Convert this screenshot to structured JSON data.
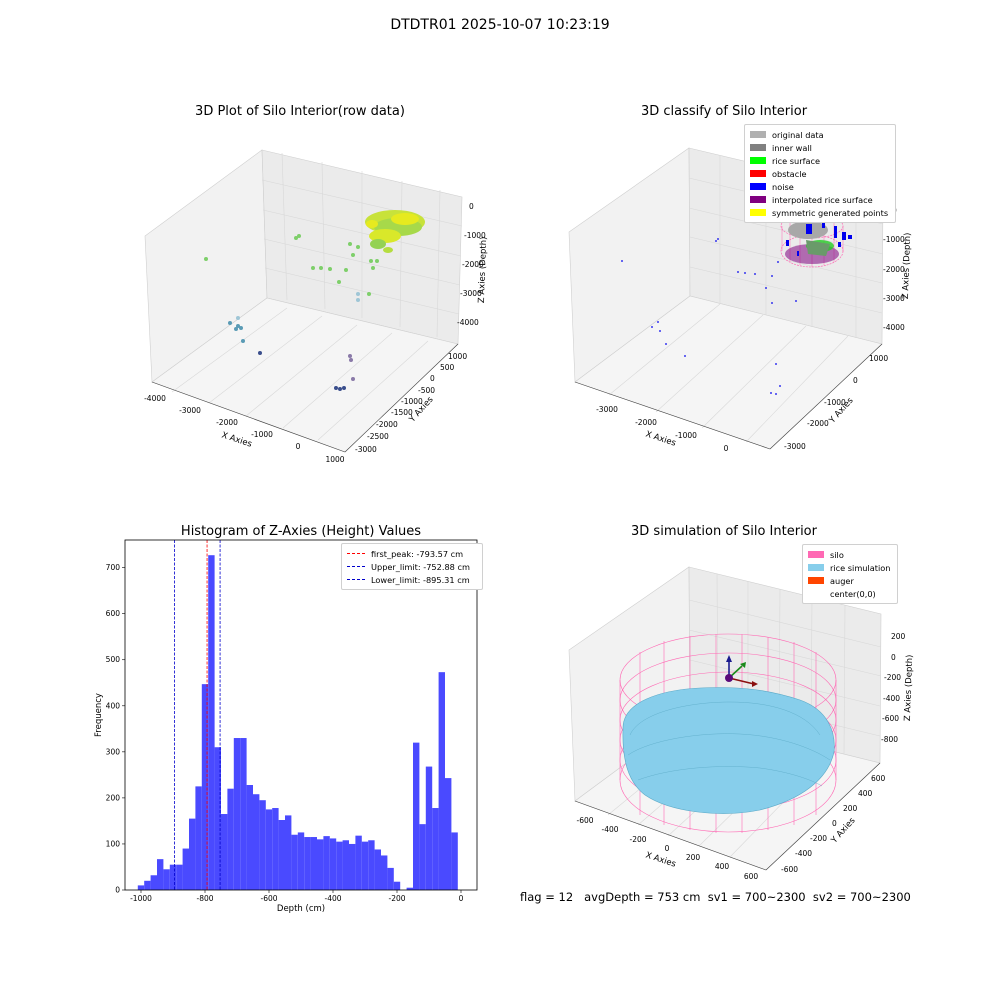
{
  "suptitle": "DTDTR01 2025-10-07 10:23:19",
  "footer": "flag = 12   avgDepth = 753 cm  sv1 = 700~2300  sv2 = 700~2300",
  "colors": {
    "hist_bar": "#4a4aff",
    "first_peak": "#ff0000",
    "limits": "#0000cc",
    "silo": "#ff69b4",
    "rice": "#87ceeb",
    "auger": "#ff4500"
  },
  "chart_data": [
    {
      "type": "scatter",
      "projection": "3d",
      "title": "3D Plot of Silo Interior(row data)",
      "xlabel": "X Axies",
      "ylabel": "Y Axies",
      "zlabel": "Z Axies (Depth)",
      "x_ticks": [
        "-4000",
        "-3000",
        "-2000",
        "-1000",
        "0",
        "1000"
      ],
      "y_ticks": [
        "1000",
        "500",
        "0",
        "-500",
        "-1000",
        "-1500",
        "-2000",
        "-2500",
        "-3000"
      ],
      "z_ticks": [
        "0",
        "-1000",
        "-2000",
        "-3000",
        "-4000"
      ],
      "colormap": "viridis"
    },
    {
      "type": "scatter",
      "projection": "3d",
      "title": "3D classify of Silo Interior",
      "xlabel": "X Axies",
      "ylabel": "Y Axies",
      "zlabel": "Z Axies (Depth)",
      "x_ticks": [
        "-3000",
        "-2000",
        "-1000",
        "0"
      ],
      "y_ticks": [
        "1000",
        "0",
        "-1000",
        "-2000",
        "-3000"
      ],
      "z_ticks": [
        "0",
        "-1000",
        "-2000",
        "-3000",
        "-4000"
      ],
      "legend": [
        {
          "label": "original data",
          "color": "#b0b0b0"
        },
        {
          "label": "inner wall",
          "color": "#808080"
        },
        {
          "label": "rice surface",
          "color": "#00ff00"
        },
        {
          "label": "obstacle",
          "color": "#ff0000"
        },
        {
          "label": "noise",
          "color": "#0000ff"
        },
        {
          "label": "interpolated rice surface",
          "color": "#800080"
        },
        {
          "label": "symmetric generated points",
          "color": "#ffff00"
        }
      ],
      "legend_position": "top-right"
    },
    {
      "type": "bar",
      "title": "Histogram of Z-Axies (Height) Values",
      "xlabel": "Depth (cm)",
      "ylabel": "Frequency",
      "xlim": [
        -1050,
        50
      ],
      "ylim": [
        0,
        760
      ],
      "x_ticks": [
        -1000,
        -800,
        -600,
        -400,
        -200,
        0
      ],
      "y_ticks": [
        0,
        100,
        200,
        300,
        400,
        500,
        600,
        700
      ],
      "bin_width": 20,
      "bin_starts": [
        -1010,
        -990,
        -970,
        -950,
        -930,
        -910,
        -890,
        -870,
        -850,
        -830,
        -810,
        -790,
        -770,
        -750,
        -730,
        -710,
        -690,
        -670,
        -650,
        -630,
        -610,
        -590,
        -570,
        -550,
        -530,
        -510,
        -490,
        -470,
        -450,
        -430,
        -410,
        -390,
        -370,
        -350,
        -330,
        -310,
        -290,
        -270,
        -250,
        -230,
        -210,
        -190,
        -170,
        -150,
        -130,
        -110,
        -90,
        -70,
        -50,
        -30,
        -10
      ],
      "values": [
        10,
        20,
        32,
        67,
        45,
        55,
        55,
        90,
        155,
        225,
        447,
        727,
        310,
        165,
        220,
        330,
        330,
        228,
        208,
        195,
        175,
        178,
        152,
        162,
        120,
        125,
        115,
        115,
        110,
        117,
        112,
        105,
        108,
        100,
        118,
        105,
        108,
        88,
        75,
        48,
        18,
        0,
        5,
        320,
        143,
        268,
        178,
        473,
        243,
        125,
        0
      ],
      "vlines": [
        {
          "label": "first_peak: -793.57 cm",
          "x": -793.57,
          "color": "#ff0000"
        },
        {
          "label": "Upper_limit: -752.88 cm",
          "x": -752.88,
          "color": "#0000cc"
        },
        {
          "label": "Lower_limit: -895.31 cm",
          "x": -895.31,
          "color": "#0000cc"
        }
      ],
      "legend_position": "top-right"
    },
    {
      "type": "surface",
      "projection": "3d",
      "title": "3D simulation of Silo Interior",
      "xlabel": "X Axies",
      "ylabel": "Y Axies",
      "zlabel": "Z Axies (Depth)",
      "x_ticks": [
        "-600",
        "-400",
        "-200",
        "0",
        "200",
        "400",
        "600"
      ],
      "y_ticks": [
        "600",
        "400",
        "200",
        "0",
        "-200",
        "-400",
        "-600"
      ],
      "z_ticks": [
        "200",
        "0",
        "-200",
        "-400",
        "-600",
        "-800"
      ],
      "legend": [
        {
          "label": "silo",
          "color": "#ff69b4"
        },
        {
          "label": "rice simulation",
          "color": "#87ceeb"
        },
        {
          "label": "auger",
          "color": "#ff4500"
        },
        {
          "label": "center(0,0)",
          "color": ""
        }
      ],
      "legend_position": "top-right"
    }
  ]
}
